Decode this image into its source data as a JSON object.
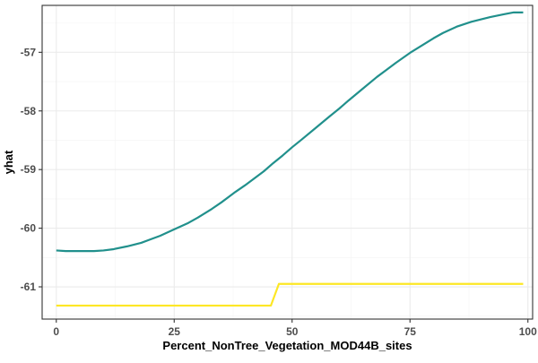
{
  "chart_data": {
    "type": "line",
    "title": "",
    "xlabel": "Percent_NonTree_Vegetation_MOD44B_sites",
    "ylabel": "yhat",
    "xlim": [
      -3,
      101
    ],
    "ylim": [
      -61.55,
      -56.2
    ],
    "x_ticks": [
      0,
      25,
      50,
      75,
      100
    ],
    "x_tick_labels": [
      "0",
      "25",
      "50",
      "75",
      "100"
    ],
    "y_ticks": [
      -61,
      -60,
      -59,
      -58,
      -57
    ],
    "y_tick_labels": [
      "-61",
      "-60",
      "-59",
      "-58",
      "-57"
    ],
    "grid": true,
    "legend": "none",
    "colors": {
      "background": "#ffffff",
      "panel_border": "#333333",
      "grid_major": "#ebebeb",
      "grid_minor": "#f4f4f4"
    },
    "series": [
      {
        "color": "#21908c",
        "x": [
          0,
          2,
          5,
          8,
          10,
          12,
          15,
          18,
          20,
          22,
          25,
          28,
          30,
          33,
          35,
          38,
          40,
          42,
          44,
          46,
          48,
          50,
          52,
          55,
          58,
          60,
          62,
          65,
          68,
          70,
          72,
          75,
          78,
          80,
          82,
          85,
          88,
          90,
          92,
          95,
          97,
          99
        ],
        "y": [
          -60.38,
          -60.39,
          -60.39,
          -60.39,
          -60.38,
          -60.36,
          -60.31,
          -60.25,
          -60.19,
          -60.13,
          -60.02,
          -59.91,
          -59.82,
          -59.67,
          -59.56,
          -59.38,
          -59.27,
          -59.15,
          -59.03,
          -58.89,
          -58.76,
          -58.62,
          -58.49,
          -58.29,
          -58.09,
          -57.96,
          -57.82,
          -57.62,
          -57.42,
          -57.3,
          -57.18,
          -57.01,
          -56.86,
          -56.76,
          -56.67,
          -56.56,
          -56.48,
          -56.44,
          -56.4,
          -56.35,
          -56.32,
          -56.32
        ]
      },
      {
        "color": "#fde725",
        "x": [
          0,
          45.5,
          47.2,
          99
        ],
        "y": [
          -61.32,
          -61.32,
          -60.95,
          -60.95
        ]
      }
    ]
  }
}
